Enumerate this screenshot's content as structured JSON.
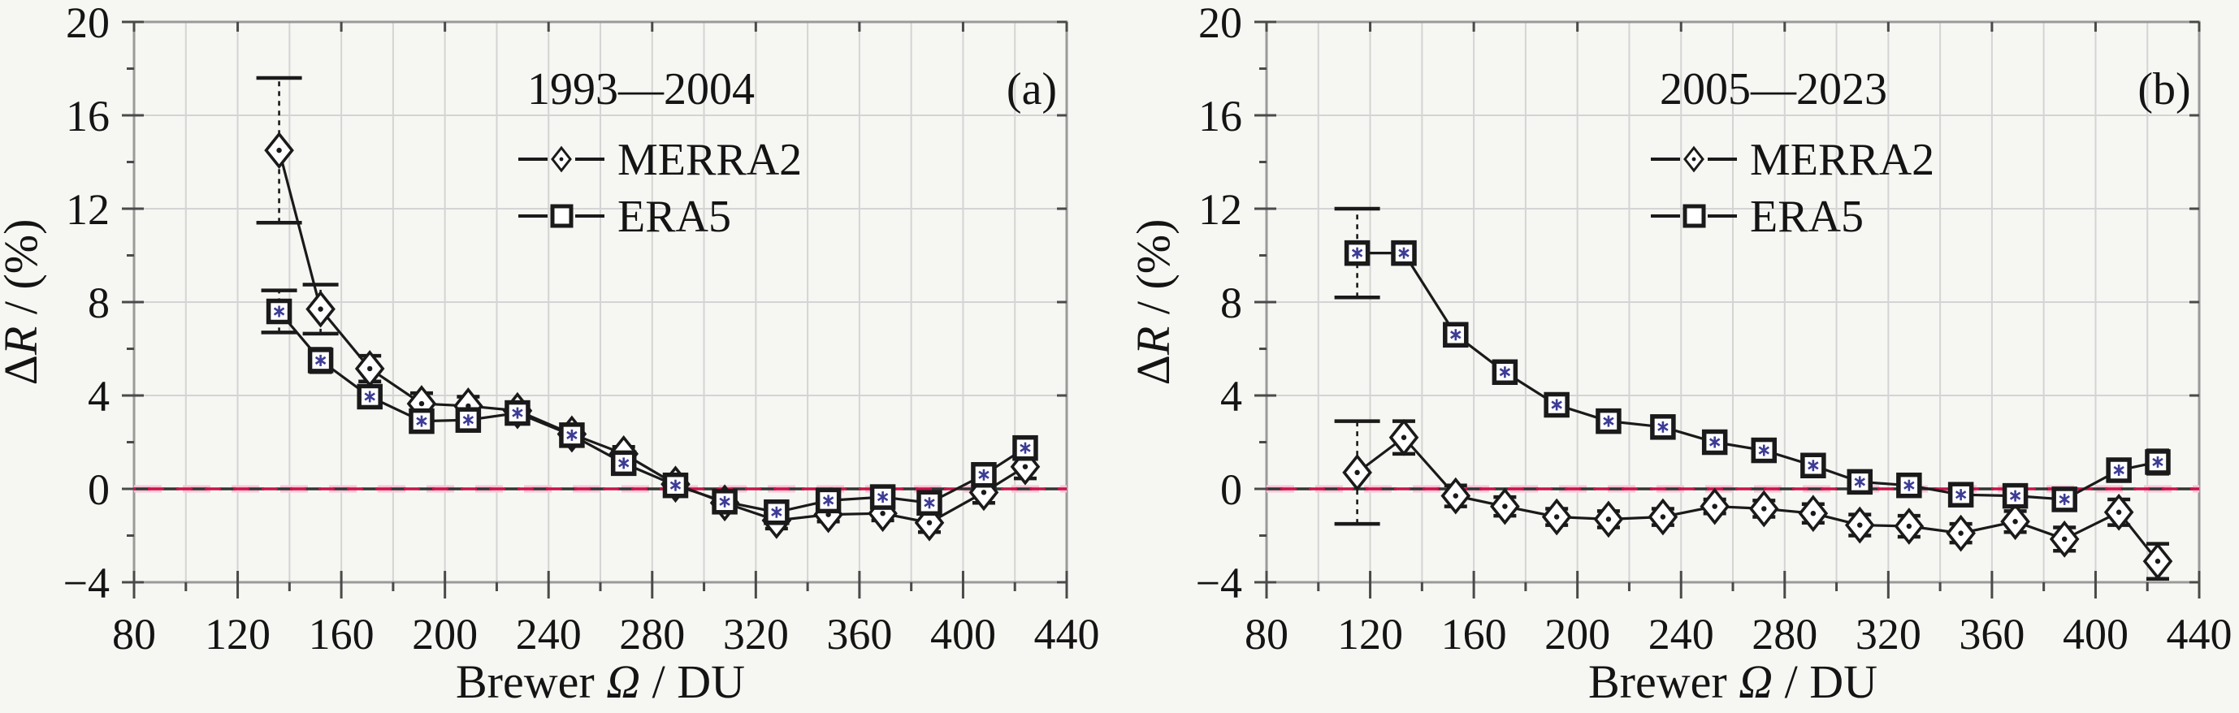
{
  "figure": {
    "background": "#f6f6f3",
    "ylabel_parts": [
      {
        "t": "Δ",
        "i": false
      },
      {
        "t": "R",
        "i": true
      },
      {
        "t": " / (%)",
        "i": false
      }
    ],
    "xlabel_parts": [
      {
        "t": "Brewer ",
        "i": false
      },
      {
        "t": "Ω",
        "i": true
      },
      {
        "t": " / DU",
        "i": false
      }
    ]
  },
  "style": {
    "line_color": "#1a1a1a",
    "grid_color": "#d4d4d4",
    "frame_color": "#9a9a9a",
    "tick_color": "#4a4a4a",
    "marker_fill": "#ffffff",
    "star_color": "#3c3c96",
    "zero_black": "#333333",
    "zero_red": "#c81347",
    "zero_pink": "#f9c6d9",
    "text_color": "#141414"
  },
  "chart_data": [
    {
      "type": "line",
      "panel_tag": "(a)",
      "legend_title": "1993—2004",
      "xlim": [
        80,
        440
      ],
      "ylim": [
        -4,
        20
      ],
      "xticks": [
        80,
        120,
        160,
        200,
        240,
        280,
        320,
        360,
        400,
        440
      ],
      "xtick_labels": [
        "80",
        "120",
        "160",
        "200",
        "240",
        "280",
        "320",
        "360",
        "400",
        "440"
      ],
      "yticks": [
        20,
        16,
        12,
        8,
        4,
        0,
        -4
      ],
      "ytick_labels": [
        "20",
        "16",
        "12",
        "8",
        "4",
        "0",
        "−4"
      ],
      "grid_x_step": 20,
      "zero_line": 0,
      "x": [
        136,
        152,
        171,
        191,
        209,
        228,
        249,
        269,
        289,
        308,
        328,
        348,
        369,
        387,
        408,
        424
      ],
      "series": [
        {
          "name": "MERRA2",
          "marker": "diamond",
          "values": [
            14.5,
            7.7,
            5.15,
            3.65,
            3.55,
            3.35,
            2.35,
            1.5,
            0.2,
            -0.6,
            -1.35,
            -1.1,
            -1.05,
            -1.45,
            -0.15,
            0.95
          ],
          "errors": [
            3.1,
            1.05,
            0.55,
            0.45,
            0.4,
            0.35,
            0.3,
            0.3,
            0.25,
            0.3,
            0.35,
            0.3,
            0.3,
            0.4,
            0.45,
            0.5
          ]
        },
        {
          "name": "ERA5",
          "marker": "square",
          "values": [
            7.6,
            5.5,
            3.95,
            2.9,
            2.95,
            3.25,
            2.3,
            1.1,
            0.15,
            -0.55,
            -1.0,
            -0.5,
            -0.35,
            -0.6,
            0.6,
            1.75
          ],
          "errors": [
            0.9,
            0.5,
            0.45,
            0.4,
            0.35,
            0.3,
            0.3,
            0.25,
            0.25,
            0.25,
            0.3,
            0.3,
            0.3,
            0.35,
            0.4,
            0.45
          ]
        }
      ]
    },
    {
      "type": "line",
      "panel_tag": "(b)",
      "legend_title": "2005—2023",
      "xlim": [
        80,
        440
      ],
      "ylim": [
        -4,
        20
      ],
      "xticks": [
        80,
        120,
        160,
        200,
        240,
        280,
        320,
        360,
        400,
        440
      ],
      "xtick_labels": [
        "80",
        "120",
        "160",
        "200",
        "240",
        "280",
        "320",
        "360",
        "400",
        "440"
      ],
      "yticks": [
        20,
        16,
        12,
        8,
        4,
        0,
        -4
      ],
      "ytick_labels": [
        "20",
        "16",
        "12",
        "8",
        "4",
        "0",
        "−4"
      ],
      "grid_x_step": 20,
      "zero_line": 0,
      "x": [
        115,
        133,
        153,
        172,
        192,
        212,
        233,
        253,
        272,
        291,
        309,
        328,
        348,
        369,
        388,
        409,
        424
      ],
      "series": [
        {
          "name": "MERRA2",
          "marker": "diamond",
          "values": [
            0.7,
            2.2,
            -0.3,
            -0.75,
            -1.2,
            -1.3,
            -1.2,
            -0.75,
            -0.85,
            -1.05,
            -1.55,
            -1.6,
            -1.9,
            -1.4,
            -2.15,
            -1.0,
            -3.1
          ],
          "errors": [
            2.2,
            0.7,
            0.45,
            0.4,
            0.35,
            0.35,
            0.35,
            0.3,
            0.35,
            0.4,
            0.45,
            0.45,
            0.4,
            0.45,
            0.5,
            0.55,
            0.75
          ]
        },
        {
          "name": "ERA5",
          "marker": "square",
          "values": [
            10.1,
            10.1,
            6.6,
            5.0,
            3.6,
            2.9,
            2.65,
            2.0,
            1.65,
            1.0,
            0.3,
            0.15,
            -0.25,
            -0.3,
            -0.45,
            0.8,
            1.15
          ],
          "errors": [
            1.9,
            0.45,
            0.4,
            0.35,
            0.3,
            0.3,
            0.3,
            0.25,
            0.3,
            0.3,
            0.3,
            0.3,
            0.3,
            0.3,
            0.35,
            0.4,
            0.5
          ]
        }
      ]
    }
  ]
}
